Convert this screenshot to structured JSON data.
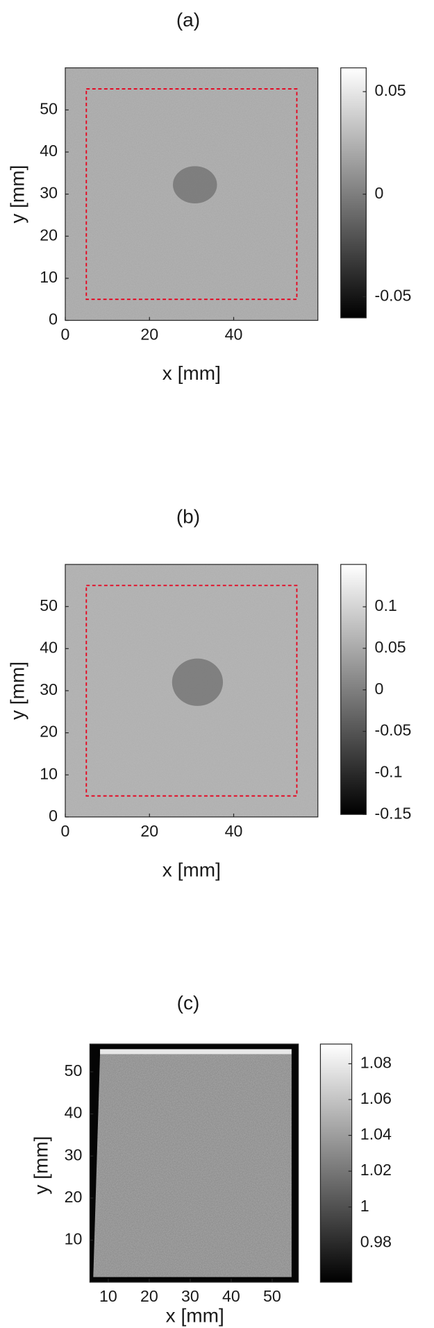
{
  "chart_data": [
    {
      "type": "heatmap",
      "title": "(a)",
      "xlabel": "x [mm]",
      "ylabel": "y [mm]",
      "xlim": [
        0,
        60
      ],
      "ylim": [
        0,
        60
      ],
      "xticks": [
        0,
        20,
        40
      ],
      "yticks": [
        0,
        10,
        20,
        30,
        40,
        50
      ],
      "colormap": "gray",
      "clim": [
        -0.0603,
        0.0616
      ],
      "cticks": [
        -0.05,
        0,
        0.05
      ],
      "rectangle": {
        "x": [
          5,
          55
        ],
        "y": [
          5,
          55
        ],
        "color": "#e8001c"
      }
    },
    {
      "type": "heatmap",
      "title": "(b)",
      "xlabel": "x [mm]",
      "ylabel": "y [mm]",
      "xlim": [
        0,
        60
      ],
      "ylim": [
        0,
        60
      ],
      "xticks": [
        0,
        20,
        40
      ],
      "yticks": [
        0,
        10,
        20,
        30,
        40,
        50
      ],
      "colormap": "gray",
      "clim": [
        -0.15,
        0.151
      ],
      "cticks": [
        -0.15,
        -0.1,
        -0.05,
        0,
        0.05,
        0.1
      ],
      "rectangle": {
        "x": [
          5,
          55
        ],
        "y": [
          5,
          55
        ],
        "color": "#e8001c"
      }
    },
    {
      "type": "heatmap",
      "title": "(c)",
      "xlabel": "x [mm]",
      "ylabel": "y [mm]",
      "xlim": [
        5.5,
        56.4
      ],
      "ylim": [
        0,
        56.6
      ],
      "xticks": [
        10,
        20,
        30,
        40,
        50
      ],
      "yticks": [
        10,
        20,
        30,
        40,
        50
      ],
      "colormap": "gray",
      "clim": [
        0.958,
        1.091
      ],
      "cticks": [
        0.98,
        1,
        1.02,
        1.04,
        1.06,
        1.08
      ]
    }
  ]
}
